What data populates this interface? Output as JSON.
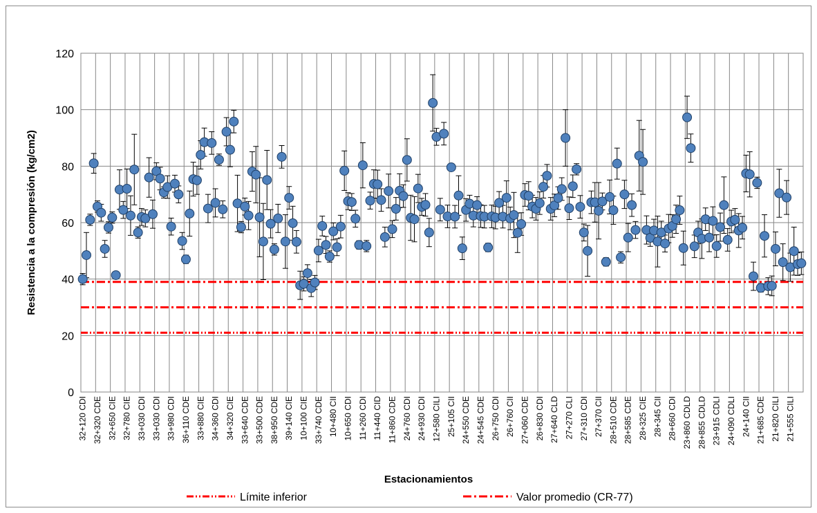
{
  "chart_data": {
    "type": "scatter",
    "xlabel": "Estacionamientos",
    "ylabel": "Resistencia a la compresión (kg/cm2)",
    "ylim": [
      0,
      120
    ],
    "yticks": [
      0,
      20,
      40,
      60,
      80,
      100,
      120
    ],
    "grid": true,
    "marker_color": "#4f81bd",
    "tick_labels": [
      "32+120 CDI",
      "32+320 CDE",
      "32+650 CIE",
      "32+780 CIE",
      "33+030 CDI",
      "33+030 CDI",
      "33+980 CDI",
      "36+110 CDE",
      "33+880 CIE",
      "34+360 CDI",
      "34+320 CIE",
      "33+640 CDE",
      "33+500 CDE",
      "38+950 CDE",
      "39+140 CIE",
      "10+100 CIE",
      "33+740 CDE",
      "10+480 CII",
      "10+650 CDI",
      "11+260 CDI",
      "11+440 CID",
      "11+860 CDE",
      "24+760 CDI",
      "24+930 CDI",
      "12+580 CILI",
      "25+105 CII",
      "24+550 CDE",
      "24+545 CDE",
      "26+750 CDI",
      "26+760 CII",
      "27+060 CDE",
      "26+830 CDI",
      "27+640 CLD",
      "27+270 CLI",
      "27+310 CDI",
      "27+370 CII",
      "28+510 CDE",
      "28+585 CDE",
      "28+325 CIE",
      "28+345 CII",
      "28+660 CDI",
      "23+860 CDLD",
      "28+855 CDLD",
      "23+915 CDLI",
      "24+090 CDLI",
      "24+140 CII",
      "21+685 CDE",
      "21+820 CILI",
      "21+555 CILI"
    ],
    "points": [
      [
        40,
        2
      ],
      [
        48.5,
        8
      ],
      [
        61,
        2
      ],
      [
        81,
        3.5
      ],
      [
        65.7,
        2
      ],
      [
        63.5,
        3
      ],
      [
        50.7,
        3
      ],
      [
        58.3,
        2
      ],
      [
        61.8,
        2
      ],
      [
        41.4,
        1
      ],
      [
        71.7,
        7
      ],
      [
        64.5,
        3
      ],
      [
        72,
        7
      ],
      [
        62.5,
        7
      ],
      [
        78.8,
        12.5
      ],
      [
        56.5,
        2
      ],
      [
        62,
        3
      ],
      [
        61.5,
        3
      ],
      [
        76,
        7
      ],
      [
        63,
        5
      ],
      [
        78.2,
        3
      ],
      [
        75.6,
        4
      ],
      [
        70.7,
        2
      ],
      [
        72.6,
        4
      ],
      [
        58.6,
        3
      ],
      [
        73.8,
        3
      ],
      [
        70,
        3
      ],
      [
        53.5,
        3
      ],
      [
        47,
        1.5
      ],
      [
        63.2,
        8
      ],
      [
        75.4,
        6
      ],
      [
        75,
        5
      ],
      [
        84,
        5
      ],
      [
        88.5,
        5
      ],
      [
        65,
        5
      ],
      [
        88.2,
        4
      ],
      [
        67,
        5
      ],
      [
        82.3,
        2
      ],
      [
        64.7,
        3
      ],
      [
        92.2,
        5
      ],
      [
        85.8,
        6
      ],
      [
        95.8,
        4
      ],
      [
        66.8,
        10
      ],
      [
        58.4,
        2
      ],
      [
        65.7,
        3
      ],
      [
        62.5,
        5
      ],
      [
        78.1,
        7
      ],
      [
        77,
        10
      ],
      [
        61.9,
        14
      ],
      [
        53.3,
        13.5
      ],
      [
        75.1,
        10.5
      ],
      [
        59.6,
        5
      ],
      [
        50.5,
        2
      ],
      [
        61.5,
        5
      ],
      [
        83.3,
        4
      ],
      [
        53.3,
        9.5
      ],
      [
        68.8,
        4
      ],
      [
        59.8,
        6
      ],
      [
        53.2,
        4
      ],
      [
        37.8,
        5
      ],
      [
        38.3,
        2.5
      ],
      [
        42.1,
        3
      ],
      [
        36.8,
        3
      ],
      [
        38.8,
        2.5
      ],
      [
        50.1,
        4
      ],
      [
        58.8,
        3.5
      ],
      [
        52.1,
        3
      ],
      [
        48,
        2
      ],
      [
        56.9,
        3
      ],
      [
        51.3,
        3
      ],
      [
        58.6,
        4
      ],
      [
        78.4,
        7
      ],
      [
        67.6,
        3
      ],
      [
        67.3,
        3
      ],
      [
        61.4,
        3
      ],
      [
        52.1,
        1.5
      ],
      [
        80.3,
        8
      ],
      [
        51.7,
        2
      ],
      [
        67.8,
        3
      ],
      [
        73.7,
        5
      ],
      [
        73.6,
        5
      ],
      [
        68,
        4
      ],
      [
        54.9,
        3.5
      ],
      [
        71.2,
        6
      ],
      [
        57.7,
        3
      ],
      [
        64.9,
        4
      ],
      [
        71.3,
        6
      ],
      [
        69.4,
        4
      ],
      [
        82.2,
        7.5
      ],
      [
        61.7,
        8
      ],
      [
        61.2,
        8
      ],
      [
        72.1,
        5
      ],
      [
        65.6,
        3
      ],
      [
        66.3,
        4
      ],
      [
        56.5,
        5
      ],
      [
        102.4,
        10
      ],
      [
        90.4,
        3
      ],
      [
        64.6,
        4
      ],
      [
        91.5,
        4
      ],
      [
        62.2,
        4
      ],
      [
        79.6,
        1
      ],
      [
        62.1,
        4
      ],
      [
        69.6,
        7
      ],
      [
        50.9,
        4
      ],
      [
        64.5,
        4
      ],
      [
        66.7,
        3
      ],
      [
        62.5,
        4
      ],
      [
        66.2,
        3
      ],
      [
        62.3,
        4
      ],
      [
        62.1,
        4
      ],
      [
        51.2,
        1.5
      ],
      [
        62.2,
        4
      ],
      [
        61.8,
        4
      ],
      [
        67,
        4
      ],
      [
        62.1,
        4
      ],
      [
        68.8,
        6
      ],
      [
        61.5,
        4
      ],
      [
        62.7,
        8
      ],
      [
        56.4,
        7
      ],
      [
        59.5,
        4
      ],
      [
        69.8,
        4
      ],
      [
        69.5,
        5
      ],
      [
        65.7,
        4
      ],
      [
        64.9,
        4
      ],
      [
        66.9,
        4
      ],
      [
        72.7,
        4
      ],
      [
        76.6,
        4
      ],
      [
        64.9,
        4
      ],
      [
        66.1,
        4
      ],
      [
        68.7,
        4
      ],
      [
        71.9,
        4
      ],
      [
        90,
        10
      ],
      [
        65.1,
        4
      ],
      [
        72.9,
        4
      ],
      [
        78.9,
        2
      ],
      [
        65.6,
        4
      ],
      [
        56.5,
        3
      ],
      [
        50,
        9
      ],
      [
        67.2,
        4
      ],
      [
        67.2,
        7
      ],
      [
        64.2,
        10
      ],
      [
        67.5,
        3
      ],
      [
        46.1,
        1.5
      ],
      [
        69.1,
        6
      ],
      [
        64.4,
        5
      ],
      [
        80.9,
        5.5
      ],
      [
        47.7,
        2
      ],
      [
        70,
        5
      ],
      [
        54.7,
        5
      ],
      [
        66.2,
        4
      ],
      [
        57.4,
        3
      ],
      [
        83.7,
        12.5
      ],
      [
        81.5,
        11.5
      ],
      [
        57.4,
        5
      ],
      [
        54.6,
        3
      ],
      [
        57.2,
        4
      ],
      [
        53.3,
        9
      ],
      [
        56.5,
        4
      ],
      [
        52.6,
        3
      ],
      [
        57.9,
        5
      ],
      [
        58.8,
        4
      ],
      [
        61.2,
        5
      ],
      [
        64.4,
        5
      ],
      [
        51,
        6
      ],
      [
        97.3,
        7.5
      ],
      [
        86.4,
        5
      ],
      [
        51.6,
        4
      ],
      [
        56.5,
        4
      ],
      [
        54.3,
        7
      ],
      [
        61.2,
        4
      ],
      [
        54.7,
        5
      ],
      [
        60.6,
        5
      ],
      [
        51.7,
        4
      ],
      [
        58.4,
        5
      ],
      [
        66.2,
        10
      ],
      [
        53.9,
        4
      ],
      [
        60.4,
        4
      ],
      [
        61,
        4
      ],
      [
        57.2,
        6
      ],
      [
        58.2,
        4
      ],
      [
        77.4,
        6.5
      ],
      [
        77.1,
        8
      ],
      [
        41,
        5
      ],
      [
        74.1,
        2
      ],
      [
        36.9,
        1.5
      ],
      [
        55.3,
        7.5
      ],
      [
        37.5,
        3
      ],
      [
        37.6,
        3.5
      ],
      [
        50.7,
        6
      ],
      [
        70.4,
        8.5
      ],
      [
        46,
        6.5
      ],
      [
        68.9,
        6
      ],
      [
        44.2,
        5
      ],
      [
        49.9,
        8.5
      ],
      [
        45.3,
        4
      ],
      [
        45.6,
        4
      ]
    ],
    "reference_lines": [
      {
        "name": "Límite inferior",
        "y": 21,
        "color": "#ff0000",
        "style": "dash-dot-dot",
        "legend": true
      },
      {
        "name": "Valor promedio (CR-77)",
        "y": 30,
        "color": "#ff0000",
        "style": "dash-dot",
        "legend": true
      },
      {
        "name": "",
        "y": 39,
        "color": "#ff0000",
        "style": "dash-dot",
        "legend": false
      }
    ],
    "legend": [
      {
        "label": "Límite inferior",
        "style": "dash-dot-dot"
      },
      {
        "label": "Valor promedio (CR-77)",
        "style": "dash-dot"
      }
    ],
    "legend_position": "bottom"
  }
}
